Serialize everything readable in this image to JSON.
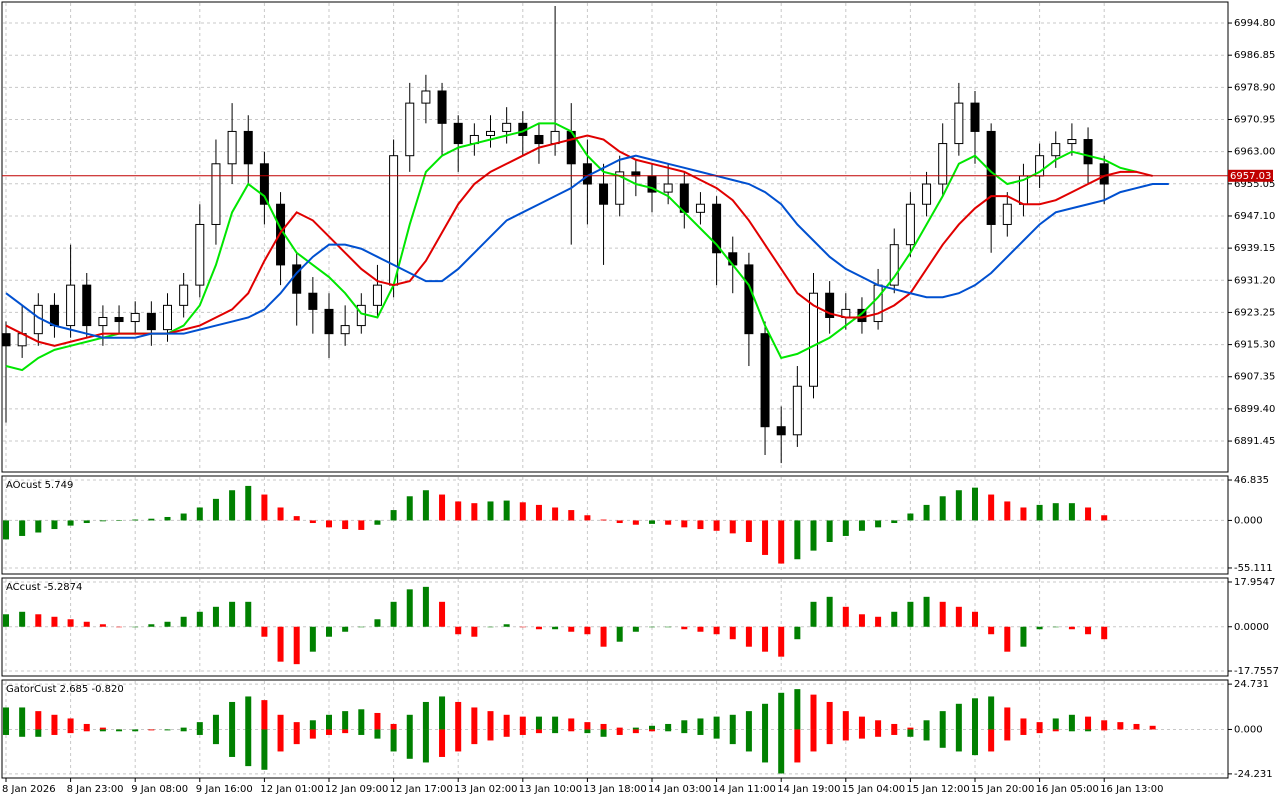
{
  "chart_data": [
    {
      "type": "candlestick",
      "categories": [
        "8 Jan 2026",
        null,
        null,
        null,
        "8 Jan 23:00",
        null,
        null,
        null,
        "9 Jan 08:00",
        null,
        null,
        null,
        "9 Jan 16:00",
        null,
        null,
        null,
        "12 Jan 01:00",
        null,
        null,
        null,
        "12 Jan 09:00",
        null,
        null,
        null,
        "12 Jan 17:00",
        null,
        null,
        null,
        "13 Jan 02:00",
        null,
        null,
        null,
        "13 Jan 10:00",
        null,
        null,
        null,
        "13 Jan 18:00",
        null,
        null,
        null,
        "14 Jan 03:00",
        null,
        null,
        null,
        "14 Jan 11:00",
        null,
        null,
        null,
        "14 Jan 19:00",
        null,
        null,
        null,
        "15 Jan 04:00",
        null,
        null,
        null,
        "15 Jan 12:00",
        null,
        null,
        null,
        "15 Jan 20:00",
        null,
        null,
        null,
        "16 Jan 05:00",
        null,
        null,
        null,
        "16 Jan 13:00",
        null,
        null,
        null,
        null
      ],
      "ohlc": [
        [
          6918,
          6921,
          6896,
          6915
        ],
        [
          6915,
          6925,
          6912,
          6918
        ],
        [
          6918,
          6928,
          6915,
          6925
        ],
        [
          6925,
          6928,
          6917,
          6920
        ],
        [
          6920,
          6940,
          6917,
          6930
        ],
        [
          6930,
          6933,
          6917,
          6920
        ],
        [
          6920,
          6925,
          6915,
          6922
        ],
        [
          6922,
          6925,
          6918,
          6921
        ],
        [
          6921,
          6926,
          6918,
          6923
        ],
        [
          6923,
          6926,
          6915,
          6919
        ],
        [
          6919,
          6928,
          6916,
          6925
        ],
        [
          6925,
          6933,
          6922,
          6930
        ],
        [
          6930,
          6950,
          6927,
          6945
        ],
        [
          6945,
          6966,
          6940,
          6960
        ],
        [
          6960,
          6975,
          6955,
          6968
        ],
        [
          6968,
          6972,
          6955,
          6960
        ],
        [
          6960,
          6963,
          6945,
          6950
        ],
        [
          6950,
          6953,
          6930,
          6935
        ],
        [
          6935,
          6938,
          6920,
          6928
        ],
        [
          6928,
          6932,
          6918,
          6924
        ],
        [
          6924,
          6928,
          6912,
          6918
        ],
        [
          6918,
          6925,
          6915,
          6920
        ],
        [
          6920,
          6928,
          6918,
          6925
        ],
        [
          6925,
          6935,
          6922,
          6930
        ],
        [
          6930,
          6966,
          6927,
          6962
        ],
        [
          6962,
          6980,
          6958,
          6975
        ],
        [
          6975,
          6982,
          6970,
          6978
        ],
        [
          6978,
          6980,
          6962,
          6970
        ],
        [
          6970,
          6972,
          6958,
          6965
        ],
        [
          6965,
          6970,
          6962,
          6967
        ],
        [
          6967,
          6972,
          6964,
          6968
        ],
        [
          6968,
          6974,
          6965,
          6970
        ],
        [
          6970,
          6973,
          6962,
          6967
        ],
        [
          6967,
          6970,
          6960,
          6965
        ],
        [
          6965,
          6999,
          6962,
          6968
        ],
        [
          6968,
          6975,
          6940,
          6960
        ],
        [
          6960,
          6966,
          6945,
          6955
        ],
        [
          6955,
          6960,
          6935,
          6950
        ],
        [
          6950,
          6962,
          6947,
          6958
        ],
        [
          6958,
          6961,
          6952,
          6957
        ],
        [
          6957,
          6960,
          6948,
          6953
        ],
        [
          6953,
          6960,
          6950,
          6955
        ],
        [
          6955,
          6958,
          6944,
          6948
        ],
        [
          6948,
          6953,
          6945,
          6950
        ],
        [
          6950,
          6952,
          6930,
          6938
        ],
        [
          6938,
          6942,
          6928,
          6935
        ],
        [
          6935,
          6938,
          6910,
          6918
        ],
        [
          6918,
          6921,
          6888,
          6895
        ],
        [
          6895,
          6900,
          6886,
          6893
        ],
        [
          6893,
          6910,
          6890,
          6905
        ],
        [
          6905,
          6933,
          6902,
          6928
        ],
        [
          6928,
          6931,
          6918,
          6922
        ],
        [
          6922,
          6928,
          6919,
          6924
        ],
        [
          6924,
          6927,
          6918,
          6921
        ],
        [
          6921,
          6934,
          6919,
          6930
        ],
        [
          6930,
          6944,
          6928,
          6940
        ],
        [
          6940,
          6953,
          6937,
          6950
        ],
        [
          6950,
          6958,
          6947,
          6955
        ],
        [
          6955,
          6970,
          6952,
          6965
        ],
        [
          6965,
          6980,
          6962,
          6975
        ],
        [
          6975,
          6978,
          6960,
          6968
        ],
        [
          6968,
          6970,
          6938,
          6945
        ],
        [
          6945,
          6953,
          6942,
          6950
        ],
        [
          6950,
          6960,
          6947,
          6957
        ],
        [
          6957,
          6965,
          6954,
          6962
        ],
        [
          6962,
          6968,
          6959,
          6965
        ],
        [
          6965,
          6970,
          6962,
          6966
        ],
        [
          6966,
          6969,
          6955,
          6960
        ],
        [
          6960,
          6962,
          6950,
          6955
        ],
        null,
        null,
        null,
        null
      ],
      "series": [
        {
          "color": "#00e600",
          "values": [
            6910,
            6909,
            6912,
            6914,
            6915,
            6916,
            6917,
            6918,
            6918,
            6918,
            6918,
            6920,
            6925,
            6935,
            6948,
            6955,
            6952,
            6944,
            6938,
            6935,
            6932,
            6928,
            6923,
            6922,
            6930,
            6945,
            6958,
            6962,
            6964,
            6965,
            6966,
            6967,
            6968,
            6970,
            6970,
            6968,
            6962,
            6958,
            6957,
            6955,
            6954,
            6952,
            6948,
            6944,
            6940,
            6935,
            6930,
            6920,
            6912,
            6913,
            6915,
            6917,
            6920,
            6923,
            6927,
            6932,
            6938,
            6945,
            6952,
            6960,
            6962,
            6958,
            6955,
            6956,
            6958,
            6961,
            6963,
            6962,
            6961,
            6959,
            6958,
            null,
            null
          ]
        },
        {
          "color": "#e00000",
          "values": [
            6920,
            6918,
            6916,
            6915,
            6916,
            6917,
            6918,
            6918,
            6918,
            6918,
            6918,
            6919,
            6920,
            6922,
            6924,
            6928,
            6936,
            6943,
            6948,
            6946,
            6942,
            6938,
            6934,
            6931,
            6930,
            6931,
            6936,
            6943,
            6950,
            6955,
            6958,
            6960,
            6962,
            6964,
            6965,
            6966,
            6967,
            6966,
            6963,
            6961,
            6960,
            6959,
            6958,
            6956,
            6954,
            6951,
            6946,
            6940,
            6934,
            6928,
            6925,
            6923,
            6922,
            6922,
            6923,
            6925,
            6928,
            6934,
            6940,
            6945,
            6949,
            6952,
            6952,
            6950,
            6950,
            6951,
            6953,
            6955,
            6957,
            6958,
            6958,
            6957,
            null
          ]
        },
        {
          "color": "#0050d0",
          "values": [
            6928,
            6925,
            6922,
            6920,
            6919,
            6918,
            6917,
            6917,
            6917,
            6918,
            6918,
            6918,
            6919,
            6920,
            6921,
            6922,
            6924,
            6928,
            6933,
            6937,
            6940,
            6940,
            6939,
            6937,
            6935,
            6933,
            6931,
            6931,
            6934,
            6938,
            6942,
            6946,
            6948,
            6950,
            6952,
            6954,
            6957,
            6959,
            6961,
            6962,
            6961,
            6960,
            6959,
            6958,
            6957,
            6956,
            6955,
            6953,
            6950,
            6945,
            6941,
            6937,
            6934,
            6932,
            6930,
            6929,
            6928,
            6927,
            6927,
            6928,
            6930,
            6933,
            6937,
            6941,
            6945,
            6948,
            6949,
            6950,
            6951,
            6953,
            6954,
            6955,
            6955
          ]
        }
      ],
      "up_color": "#ffffff",
      "down_color": "#000000",
      "ylim": [
        6883.8,
        7000.0
      ],
      "yticks": [
        {
          "value": 6994.8,
          "label": "6994.80"
        },
        6986.85,
        {
          "value": 6978.9,
          "label": "6978.90"
        },
        6970.95,
        {
          "value": 6963,
          "label": "6963.00"
        },
        6955.05,
        {
          "value": 6947.1,
          "label": "6947.10"
        },
        6939.15,
        {
          "value": 6931.2,
          "label": "6931.20"
        },
        6923.25,
        {
          "value": 6915.3,
          "label": "6915.30"
        },
        6907.35,
        {
          "value": 6899.4,
          "label": "6899.40"
        },
        6891.45
      ],
      "last_price": 6957.03,
      "last_price_color": "#c00000",
      "grid": true
    },
    {
      "type": "histogram",
      "title": "AOcust 5.749",
      "up_color": "#008000",
      "down_color": "#ff0000",
      "values": [
        -22,
        -18,
        -14,
        -10,
        -6,
        -3,
        -1,
        0,
        1,
        2,
        4,
        8,
        15,
        25,
        35,
        40,
        30,
        15,
        5,
        -3,
        -8,
        -10,
        -11,
        -5,
        12,
        28,
        35,
        30,
        22,
        20,
        22,
        23,
        21,
        18,
        15,
        12,
        6,
        1,
        -3,
        -5,
        -4,
        -5,
        -8,
        -10,
        -12,
        -15,
        -25,
        -40,
        -50,
        -45,
        -35,
        -25,
        -18,
        -12,
        -8,
        -3,
        8,
        18,
        28,
        35,
        38,
        30,
        22,
        15,
        18,
        20,
        20,
        15,
        6,
        null,
        null,
        null,
        null
      ],
      "ylim": [
        -62.1,
        51.5
      ],
      "yticks": [
        46.835,
        {
          "value": 0,
          "label": "0.000"
        },
        -55.111
      ],
      "grid": true
    },
    {
      "type": "histogram",
      "title": "ACcust -5.2874",
      "up_color": "#008000",
      "down_color": "#ff0000",
      "values": [
        5,
        6,
        5,
        4,
        3,
        2,
        1,
        0,
        0,
        1,
        2,
        4,
        6,
        8,
        10,
        10,
        -4,
        -14,
        -15,
        -10,
        -4,
        -2,
        0,
        3,
        10,
        15,
        16,
        10,
        -3,
        -4,
        0,
        1,
        0,
        -1,
        -1,
        -2,
        -3,
        -8,
        -6,
        -2,
        0,
        0,
        -1,
        -2,
        -3,
        -5,
        -8,
        -10,
        -12,
        -5,
        10,
        12,
        8,
        5,
        4,
        6,
        10,
        12,
        10,
        8,
        6,
        -3,
        -10,
        -8,
        -1,
        0,
        -1,
        -3,
        -5,
        null,
        null,
        null,
        null
      ],
      "ylim": [
        -19.75,
        19.55
      ],
      "yticks": [
        17.9547,
        {
          "value": 0,
          "label": "0.0000"
        },
        -17.7557
      ],
      "grid": true
    },
    {
      "type": "gator",
      "title": "GatorCust 2.685 -0.820",
      "up_color": "#008000",
      "down_color": "#ff0000",
      "series": [
        {
          "values": [
            12,
            12,
            10,
            8,
            6,
            3,
            1,
            0,
            0,
            0,
            0,
            1,
            4,
            8,
            15,
            18,
            16,
            8,
            4,
            5,
            8,
            10,
            11,
            9,
            3,
            8,
            15,
            18,
            15,
            12,
            10,
            8,
            7,
            7,
            7,
            6,
            4,
            3,
            1,
            1,
            2,
            3,
            5,
            6,
            7,
            8,
            10,
            14,
            20,
            22,
            19,
            15,
            10,
            7,
            5,
            3,
            1,
            5,
            10,
            14,
            17,
            18,
            12,
            6,
            4,
            6,
            8,
            7,
            5,
            4,
            3,
            2,
            null
          ]
        },
        {
          "values": [
            -3,
            -4,
            -4,
            -3,
            -2,
            -1,
            -1,
            -1,
            -1,
            -0.5,
            -0.5,
            -1,
            -3,
            -8,
            -15,
            -20,
            -22,
            -12,
            -8,
            -5,
            -3,
            -2,
            -3,
            -5,
            -12,
            -16,
            -18,
            -15,
            -12,
            -8,
            -6,
            -4,
            -3,
            -2,
            -2,
            -1,
            -2,
            -4,
            -3,
            -2,
            -1,
            -1,
            -2,
            -3,
            -5,
            -8,
            -12,
            -18,
            -24,
            -18,
            -12,
            -8,
            -6,
            -5,
            -4,
            -3,
            -4,
            -6,
            -10,
            -12,
            -14,
            -12,
            -6,
            -3,
            -2,
            -1,
            -1,
            -1,
            -0.5,
            null,
            null,
            null,
            null
          ]
        }
      ],
      "ylim": [
        -26.48,
        26.98
      ],
      "yticks": [
        24.731,
        {
          "value": 0,
          "label": "0.000"
        },
        -24.231
      ],
      "grid": true
    }
  ]
}
